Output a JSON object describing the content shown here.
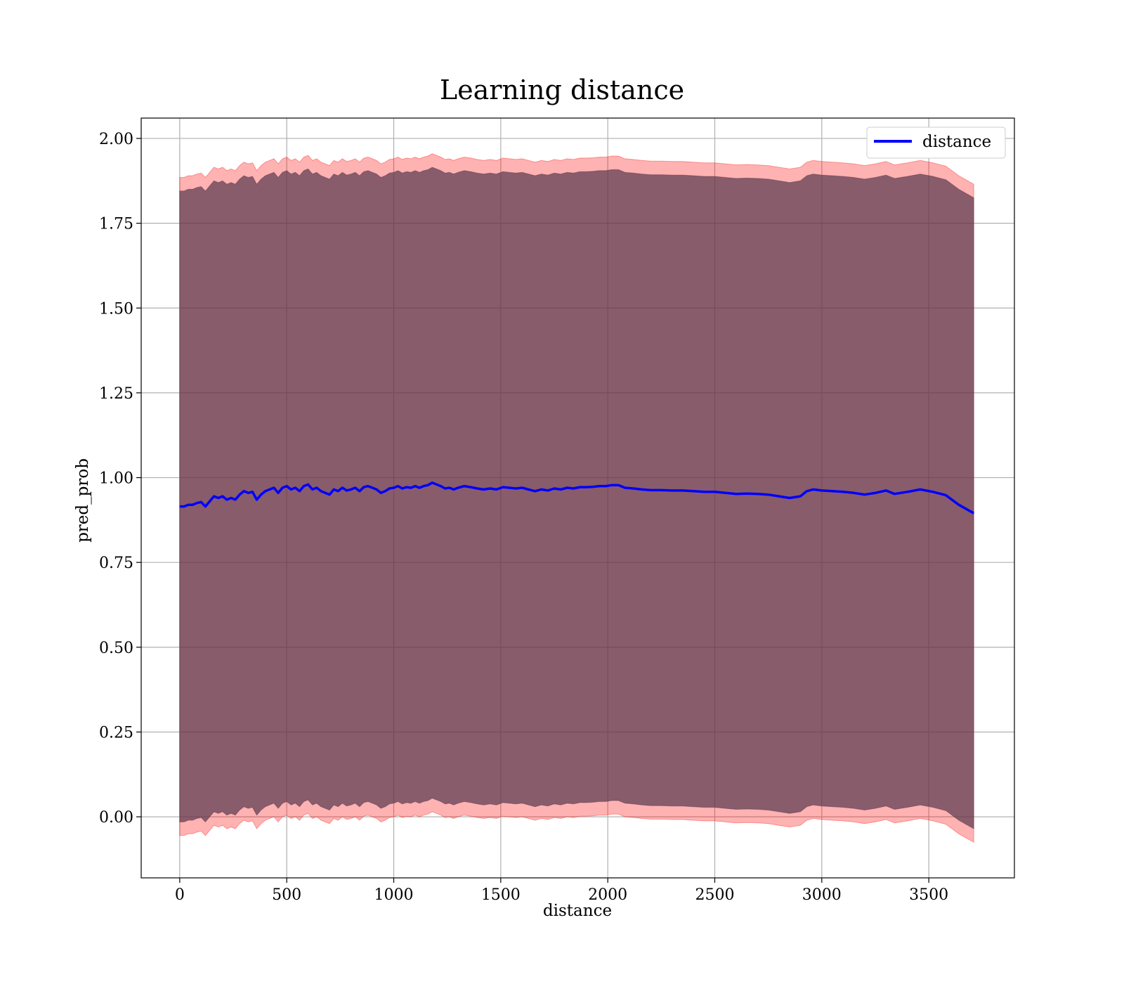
{
  "chart_data": {
    "type": "line",
    "title": "Learning distance",
    "xlabel": "distance",
    "ylabel": "pred_prob",
    "xlim": [
      -180,
      3900
    ],
    "ylim": [
      -0.18,
      2.06
    ],
    "xticks": [
      0,
      500,
      1000,
      1500,
      2000,
      2500,
      3000,
      3500
    ],
    "yticks": [
      0.0,
      0.25,
      0.5,
      0.75,
      1.0,
      1.25,
      1.5,
      1.75,
      2.0
    ],
    "ytick_labels": [
      "0.00",
      "0.25",
      "0.50",
      "0.75",
      "1.00",
      "1.25",
      "1.50",
      "1.75",
      "2.00"
    ],
    "grid": true,
    "legend_position": "top-right",
    "series": [
      {
        "name": "distance",
        "color": "#0000ff",
        "x": [
          0,
          20,
          40,
          60,
          80,
          100,
          120,
          140,
          160,
          180,
          200,
          220,
          240,
          260,
          280,
          300,
          320,
          340,
          360,
          380,
          400,
          420,
          440,
          460,
          480,
          500,
          520,
          540,
          560,
          580,
          600,
          620,
          640,
          660,
          680,
          700,
          720,
          740,
          760,
          780,
          800,
          820,
          840,
          860,
          880,
          900,
          920,
          940,
          960,
          980,
          1000,
          1020,
          1040,
          1060,
          1080,
          1100,
          1120,
          1140,
          1160,
          1180,
          1200,
          1220,
          1240,
          1260,
          1280,
          1300,
          1330,
          1360,
          1390,
          1420,
          1450,
          1480,
          1510,
          1540,
          1570,
          1600,
          1630,
          1660,
          1690,
          1720,
          1750,
          1780,
          1810,
          1840,
          1870,
          1900,
          1930,
          1960,
          1990,
          2020,
          2050,
          2080,
          2120,
          2160,
          2200,
          2250,
          2300,
          2350,
          2400,
          2450,
          2500,
          2550,
          2600,
          2650,
          2700,
          2750,
          2800,
          2850,
          2900,
          2930,
          2960,
          3000,
          3050,
          3100,
          3150,
          3200,
          3250,
          3300,
          3340,
          3400,
          3460,
          3520,
          3580,
          3640,
          3710
        ],
        "y": [
          0.915,
          0.915,
          0.92,
          0.92,
          0.925,
          0.928,
          0.915,
          0.93,
          0.945,
          0.94,
          0.945,
          0.935,
          0.94,
          0.935,
          0.95,
          0.96,
          0.955,
          0.958,
          0.935,
          0.95,
          0.96,
          0.965,
          0.97,
          0.955,
          0.97,
          0.975,
          0.965,
          0.97,
          0.96,
          0.975,
          0.98,
          0.965,
          0.97,
          0.96,
          0.955,
          0.95,
          0.965,
          0.96,
          0.97,
          0.962,
          0.965,
          0.97,
          0.96,
          0.972,
          0.975,
          0.97,
          0.965,
          0.955,
          0.96,
          0.968,
          0.97,
          0.975,
          0.968,
          0.972,
          0.97,
          0.975,
          0.97,
          0.975,
          0.978,
          0.985,
          0.98,
          0.975,
          0.968,
          0.97,
          0.965,
          0.97,
          0.975,
          0.972,
          0.968,
          0.965,
          0.968,
          0.965,
          0.972,
          0.97,
          0.968,
          0.97,
          0.965,
          0.96,
          0.965,
          0.962,
          0.968,
          0.965,
          0.97,
          0.968,
          0.972,
          0.972,
          0.973,
          0.975,
          0.975,
          0.978,
          0.978,
          0.97,
          0.968,
          0.965,
          0.963,
          0.963,
          0.962,
          0.962,
          0.96,
          0.958,
          0.958,
          0.955,
          0.952,
          0.953,
          0.952,
          0.95,
          0.945,
          0.94,
          0.945,
          0.96,
          0.965,
          0.962,
          0.96,
          0.958,
          0.955,
          0.95,
          0.955,
          0.962,
          0.952,
          0.958,
          0.965,
          0.958,
          0.948,
          0.92,
          0.895
        ],
        "band_outer_half_width": 0.97,
        "band_inner_half_width": 0.93
      }
    ]
  }
}
